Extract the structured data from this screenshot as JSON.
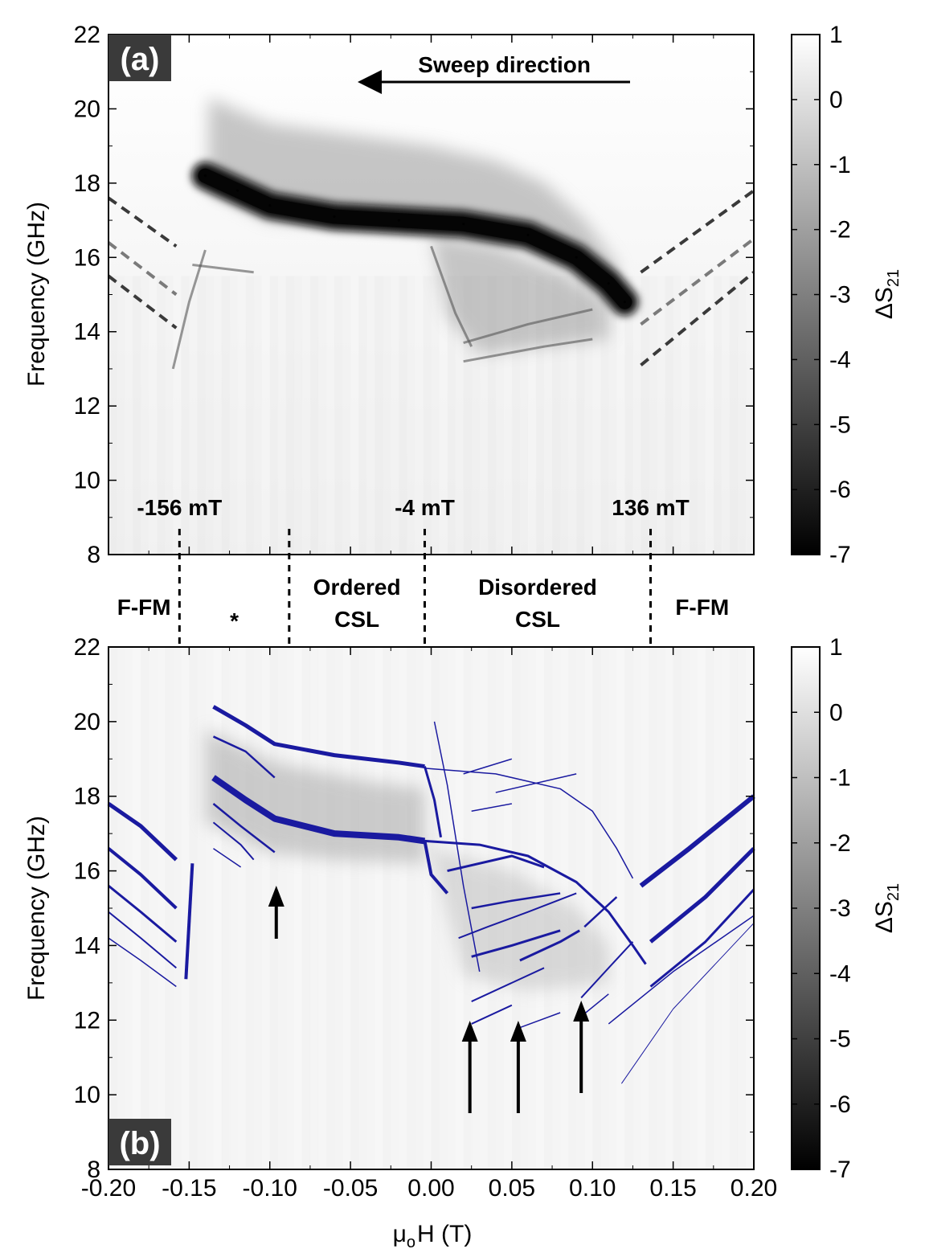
{
  "chart_data": [
    {
      "type": "heatmap",
      "panel_label": "(a)",
      "ylabel": "Frequency (GHz)",
      "xlim": [
        -0.2,
        0.2
      ],
      "ylim": [
        8,
        22
      ],
      "yticks": [
        "8",
        "10",
        "12",
        "14",
        "16",
        "18",
        "20",
        "22"
      ],
      "colorbar": {
        "label_main": "ΔS",
        "label_sub": "21",
        "range": [
          -7,
          1
        ],
        "ticks": [
          "1",
          "0",
          "-1",
          "-2",
          "-3",
          "-4",
          "-5",
          "-6",
          "-7"
        ]
      },
      "annotations": {
        "sweep_direction": "Sweep direction",
        "field_labels": [
          {
            "text": "-156 mT",
            "x": -0.156
          },
          {
            "text": "-4 mT",
            "x": -0.004
          },
          {
            "text": "136 mT",
            "x": 0.136
          }
        ]
      },
      "main_mode": [
        {
          "x": -0.14,
          "y": 18.2
        },
        {
          "x": -0.12,
          "y": 17.8
        },
        {
          "x": -0.1,
          "y": 17.4
        },
        {
          "x": -0.06,
          "y": 17.1
        },
        {
          "x": -0.02,
          "y": 17.0
        },
        {
          "x": 0.02,
          "y": 16.9
        },
        {
          "x": 0.06,
          "y": 16.6
        },
        {
          "x": 0.09,
          "y": 16.0
        },
        {
          "x": 0.11,
          "y": 15.3
        },
        {
          "x": 0.12,
          "y": 14.8
        }
      ],
      "dashed_guides": [
        {
          "points": [
            [
              -0.2,
              17.6
            ],
            [
              -0.158,
              16.3
            ]
          ],
          "color": "#3a3a3a"
        },
        {
          "points": [
            [
              -0.2,
              16.4
            ],
            [
              -0.158,
              15.0
            ]
          ],
          "color": "#7a7a7a"
        },
        {
          "points": [
            [
              -0.2,
              15.5
            ],
            [
              -0.158,
              14.1
            ]
          ],
          "color": "#3a3a3a"
        },
        {
          "points": [
            [
              0.13,
              15.6
            ],
            [
              0.2,
              17.8
            ]
          ],
          "color": "#3a3a3a"
        },
        {
          "points": [
            [
              0.13,
              14.2
            ],
            [
              0.2,
              16.5
            ]
          ],
          "color": "#7a7a7a"
        },
        {
          "points": [
            [
              0.13,
              13.1
            ],
            [
              0.2,
              15.6
            ]
          ],
          "color": "#3a3a3a"
        }
      ]
    },
    {
      "type": "heatmap",
      "panel_label": "(b)",
      "xlabel_main": "μ",
      "xlabel_sub": "o",
      "xlabel_rest": "H (T)",
      "ylabel": "Frequency (GHz)",
      "xlim": [
        -0.2,
        0.2
      ],
      "ylim": [
        8,
        22
      ],
      "xticks": [
        "-0.20",
        "-0.15",
        "-0.10",
        "-0.05",
        "0.00",
        "0.05",
        "0.10",
        "0.15",
        "0.20"
      ],
      "yticks": [
        "8",
        "10",
        "12",
        "14",
        "16",
        "18",
        "20",
        "22"
      ],
      "colorbar": {
        "label_main": "ΔS",
        "label_sub": "21",
        "range": [
          -7,
          1
        ],
        "ticks": [
          "1",
          "0",
          "-1",
          "-2",
          "-3",
          "-4",
          "-5",
          "-6",
          "-7"
        ]
      },
      "phase_boundaries_x": [
        -0.156,
        -0.088,
        -0.004,
        0.136
      ],
      "phase_regions": [
        {
          "lines": [
            "F-FM"
          ]
        },
        {
          "lines": [
            "*"
          ]
        },
        {
          "lines": [
            "Ordered",
            "CSL"
          ]
        },
        {
          "lines": [
            "Disordered",
            "CSL"
          ]
        },
        {
          "lines": [
            "F-FM"
          ]
        }
      ],
      "arrows_x": [
        -0.096,
        0.024,
        0.054,
        0.093
      ],
      "series_color": "#1a1aa0",
      "fitted_modes": [
        {
          "points": [
            [
              -0.2,
              17.8
            ],
            [
              -0.18,
              17.2
            ],
            [
              -0.158,
              16.3
            ]
          ],
          "weight": 5
        },
        {
          "points": [
            [
              -0.2,
              16.6
            ],
            [
              -0.18,
              15.9
            ],
            [
              -0.158,
              15.0
            ]
          ],
          "weight": 4
        },
        {
          "points": [
            [
              -0.2,
              15.6
            ],
            [
              -0.18,
              14.9
            ],
            [
              -0.158,
              14.1
            ]
          ],
          "weight": 3
        },
        {
          "points": [
            [
              -0.2,
              14.9
            ],
            [
              -0.18,
              14.2
            ],
            [
              -0.158,
              13.4
            ]
          ],
          "weight": 2
        },
        {
          "points": [
            [
              -0.2,
              14.2
            ],
            [
              -0.18,
              13.6
            ],
            [
              -0.158,
              12.9
            ]
          ],
          "weight": 1.5
        },
        {
          "points": [
            [
              -0.152,
              13.1
            ],
            [
              -0.148,
              16.2
            ]
          ],
          "weight": 4
        },
        {
          "points": [
            [
              -0.135,
              20.4
            ],
            [
              -0.115,
              19.9
            ],
            [
              -0.097,
              19.4
            ],
            [
              -0.06,
              19.1
            ],
            [
              -0.02,
              18.9
            ],
            [
              -0.004,
              18.8
            ]
          ],
          "weight": 5
        },
        {
          "points": [
            [
              -0.135,
              18.5
            ],
            [
              -0.115,
              17.9
            ],
            [
              -0.097,
              17.4
            ],
            [
              -0.06,
              17.0
            ],
            [
              -0.02,
              16.9
            ],
            [
              -0.004,
              16.8
            ]
          ],
          "weight": 8
        },
        {
          "points": [
            [
              -0.135,
              19.6
            ],
            [
              -0.115,
              19.2
            ],
            [
              -0.097,
              18.5
            ]
          ],
          "weight": 2.5
        },
        {
          "points": [
            [
              -0.135,
              17.8
            ],
            [
              -0.118,
              17.2
            ],
            [
              -0.097,
              16.5
            ]
          ],
          "weight": 2.5
        },
        {
          "points": [
            [
              -0.135,
              17.3
            ],
            [
              -0.118,
              16.7
            ],
            [
              -0.11,
              16.3
            ]
          ],
          "weight": 2
        },
        {
          "points": [
            [
              -0.135,
              16.6
            ],
            [
              -0.118,
              16.1
            ]
          ],
          "weight": 1.5
        },
        {
          "points": [
            [
              -0.004,
              18.75
            ],
            [
              0.04,
              18.6
            ],
            [
              0.08,
              18.2
            ],
            [
              0.1,
              17.6
            ],
            [
              0.115,
              16.6
            ],
            [
              0.125,
              15.8
            ]
          ],
          "weight": 1.5
        },
        {
          "points": [
            [
              -0.004,
              16.8
            ],
            [
              0.03,
              16.7
            ],
            [
              0.06,
              16.4
            ],
            [
              0.09,
              15.7
            ],
            [
              0.11,
              14.9
            ],
            [
              0.125,
              14.0
            ],
            [
              0.133,
              13.5
            ]
          ],
          "weight": 3
        },
        {
          "points": [
            [
              -0.004,
              16.8
            ],
            [
              0.0,
              15.9
            ],
            [
              0.01,
              15.4
            ]
          ],
          "weight": 4
        },
        {
          "points": [
            [
              -0.004,
              18.8
            ],
            [
              0.002,
              17.9
            ],
            [
              0.006,
              16.9
            ]
          ],
          "weight": 3
        },
        {
          "points": [
            [
              0.002,
              20.0
            ],
            [
              0.01,
              18.3
            ],
            [
              0.02,
              15.6
            ],
            [
              0.03,
              13.3
            ]
          ],
          "weight": 1.5
        },
        {
          "points": [
            [
              0.02,
              18.6
            ],
            [
              0.05,
              19.0
            ]
          ],
          "weight": 1.5
        },
        {
          "points": [
            [
              0.025,
              17.6
            ],
            [
              0.05,
              17.8
            ]
          ],
          "weight": 1.5
        },
        {
          "points": [
            [
              0.04,
              18.1
            ],
            [
              0.09,
              18.6
            ]
          ],
          "weight": 1.5
        },
        {
          "points": [
            [
              0.01,
              16.0
            ],
            [
              0.05,
              16.4
            ],
            [
              0.07,
              16.1
            ]
          ],
          "weight": 3
        },
        {
          "points": [
            [
              0.025,
              15.0
            ],
            [
              0.05,
              15.2
            ],
            [
              0.08,
              15.4
            ]
          ],
          "weight": 2.5
        },
        {
          "points": [
            [
              0.017,
              14.2
            ],
            [
              0.035,
              14.5
            ],
            [
              0.06,
              14.9
            ],
            [
              0.09,
              15.4
            ]
          ],
          "weight": 2
        },
        {
          "points": [
            [
              0.025,
              13.7
            ],
            [
              0.05,
              14.0
            ],
            [
              0.08,
              14.4
            ]
          ],
          "weight": 3
        },
        {
          "points": [
            [
              0.055,
              13.6
            ],
            [
              0.08,
              14.1
            ],
            [
              0.092,
              14.4
            ]
          ],
          "weight": 3
        },
        {
          "points": [
            [
              0.025,
              12.5
            ],
            [
              0.05,
              13.0
            ],
            [
              0.07,
              13.4
            ]
          ],
          "weight": 2
        },
        {
          "points": [
            [
              0.025,
              11.9
            ],
            [
              0.05,
              12.4
            ]
          ],
          "weight": 2
        },
        {
          "points": [
            [
              0.055,
              11.8
            ],
            [
              0.08,
              12.2
            ]
          ],
          "weight": 1.5
        },
        {
          "points": [
            [
              0.093,
              12.6
            ],
            [
              0.11,
              13.4
            ],
            [
              0.125,
              14.1
            ]
          ],
          "weight": 2
        },
        {
          "points": [
            [
              0.093,
              12.1
            ],
            [
              0.11,
              12.7
            ]
          ],
          "weight": 1.5
        },
        {
          "points": [
            [
              0.095,
              14.5
            ],
            [
              0.115,
              15.3
            ]
          ],
          "weight": 2.5
        },
        {
          "points": [
            [
              0.13,
              15.6
            ],
            [
              0.16,
              16.6
            ],
            [
              0.2,
              18.0
            ]
          ],
          "weight": 6
        },
        {
          "points": [
            [
              0.136,
              14.1
            ],
            [
              0.17,
              15.3
            ],
            [
              0.2,
              16.6
            ]
          ],
          "weight": 5
        },
        {
          "points": [
            [
              0.136,
              12.9
            ],
            [
              0.17,
              14.1
            ],
            [
              0.2,
              15.5
            ]
          ],
          "weight": 3
        },
        {
          "points": [
            [
              0.11,
              11.9
            ],
            [
              0.15,
              13.3
            ],
            [
              0.2,
              14.8
            ]
          ],
          "weight": 1.5
        },
        {
          "points": [
            [
              0.118,
              10.3
            ],
            [
              0.15,
              12.3
            ],
            [
              0.2,
              14.6
            ]
          ],
          "weight": 1
        }
      ]
    }
  ]
}
